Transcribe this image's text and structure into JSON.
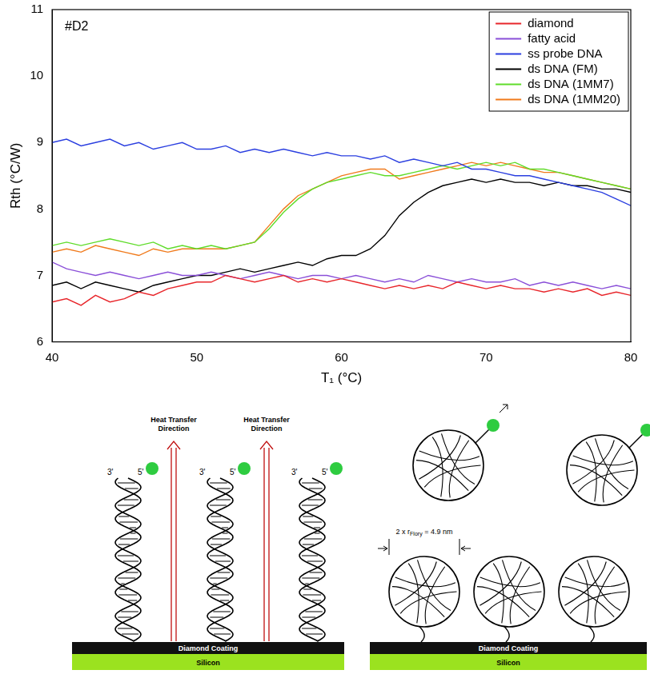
{
  "chart_data": {
    "type": "line",
    "annotation": "#D2",
    "x_label": "T₁ (°C)",
    "y_label": "Rth (°C/W)",
    "xlim": [
      40,
      80
    ],
    "xticks": [
      40,
      50,
      60,
      70,
      80
    ],
    "ylim": [
      6,
      11
    ],
    "yticks": [
      6,
      7,
      8,
      9,
      10,
      11
    ],
    "grid": false,
    "legend": "upper right",
    "x": [
      40,
      41,
      42,
      43,
      44,
      45,
      46,
      47,
      48,
      49,
      50,
      51,
      52,
      53,
      54,
      55,
      56,
      57,
      58,
      59,
      60,
      61,
      62,
      63,
      64,
      65,
      66,
      67,
      68,
      69,
      70,
      71,
      72,
      73,
      74,
      75,
      76,
      77,
      78,
      79,
      80
    ],
    "series": [
      {
        "name": "diamond",
        "color": "#e8262b",
        "values": [
          6.6,
          6.65,
          6.55,
          6.7,
          6.6,
          6.65,
          6.75,
          6.7,
          6.8,
          6.85,
          6.9,
          6.9,
          7.0,
          6.95,
          6.9,
          6.95,
          7.0,
          6.9,
          6.95,
          6.9,
          6.95,
          6.9,
          6.85,
          6.8,
          6.85,
          6.8,
          6.85,
          6.8,
          6.9,
          6.85,
          6.8,
          6.85,
          6.8,
          6.8,
          6.75,
          6.8,
          6.75,
          6.8,
          6.7,
          6.75,
          6.7
        ]
      },
      {
        "name": "fatty acid",
        "color": "#8a4fd8",
        "values": [
          7.2,
          7.1,
          7.05,
          7.0,
          7.05,
          7.0,
          6.95,
          7.0,
          7.05,
          7.0,
          7.0,
          7.05,
          7.0,
          6.95,
          7.0,
          7.05,
          7.0,
          6.95,
          7.0,
          7.0,
          6.95,
          7.0,
          6.95,
          6.9,
          6.95,
          6.9,
          7.0,
          6.95,
          6.9,
          6.95,
          6.9,
          6.9,
          6.95,
          6.85,
          6.9,
          6.85,
          6.9,
          6.85,
          6.8,
          6.85,
          6.8
        ]
      },
      {
        "name": "ss probe DNA",
        "color": "#2b3fe0",
        "values": [
          9.0,
          9.05,
          8.95,
          9.0,
          9.05,
          8.95,
          9.0,
          8.9,
          8.95,
          9.0,
          8.9,
          8.9,
          8.95,
          8.85,
          8.9,
          8.85,
          8.9,
          8.85,
          8.8,
          8.85,
          8.8,
          8.8,
          8.75,
          8.8,
          8.7,
          8.75,
          8.7,
          8.65,
          8.7,
          8.6,
          8.6,
          8.55,
          8.5,
          8.5,
          8.45,
          8.4,
          8.35,
          8.3,
          8.25,
          8.15,
          8.05
        ]
      },
      {
        "name": "ds DNA (FM)",
        "color": "#000000",
        "values": [
          6.85,
          6.9,
          6.8,
          6.9,
          6.85,
          6.8,
          6.75,
          6.85,
          6.9,
          6.95,
          7.0,
          7.0,
          7.05,
          7.1,
          7.05,
          7.1,
          7.15,
          7.2,
          7.15,
          7.25,
          7.3,
          7.3,
          7.4,
          7.6,
          7.9,
          8.1,
          8.25,
          8.35,
          8.4,
          8.45,
          8.4,
          8.45,
          8.4,
          8.4,
          8.35,
          8.4,
          8.35,
          8.35,
          8.3,
          8.3,
          8.25
        ]
      },
      {
        "name": "ds DNA (1MM7)",
        "color": "#5fdc2a",
        "values": [
          7.45,
          7.5,
          7.45,
          7.5,
          7.55,
          7.5,
          7.45,
          7.5,
          7.4,
          7.45,
          7.4,
          7.45,
          7.4,
          7.45,
          7.5,
          7.7,
          7.95,
          8.15,
          8.3,
          8.4,
          8.45,
          8.5,
          8.55,
          8.5,
          8.5,
          8.55,
          8.6,
          8.65,
          8.6,
          8.65,
          8.7,
          8.65,
          8.7,
          8.6,
          8.6,
          8.55,
          8.5,
          8.45,
          8.4,
          8.35,
          8.3
        ]
      },
      {
        "name": "ds DNA (1MM20)",
        "color": "#f07a1c",
        "values": [
          7.35,
          7.4,
          7.35,
          7.45,
          7.4,
          7.35,
          7.3,
          7.4,
          7.35,
          7.4,
          7.4,
          7.4,
          7.4,
          7.45,
          7.5,
          7.75,
          8.0,
          8.2,
          8.3,
          8.4,
          8.5,
          8.55,
          8.6,
          8.6,
          8.45,
          8.5,
          8.55,
          8.6,
          8.65,
          8.7,
          8.65,
          8.7,
          8.65,
          8.6,
          8.55,
          8.55,
          8.5,
          8.45,
          8.4,
          8.35,
          8.3
        ]
      }
    ]
  },
  "diagram": {
    "heat_transfer_label": "Heat Transfer Direction",
    "strand_ends": [
      "3'",
      "5'"
    ],
    "layers": [
      "Diamond Coating",
      "Silicon"
    ],
    "flory_label": {
      "text": "2 x r",
      "subscript": "Flory",
      "rest": " = 4.9 nm"
    }
  }
}
